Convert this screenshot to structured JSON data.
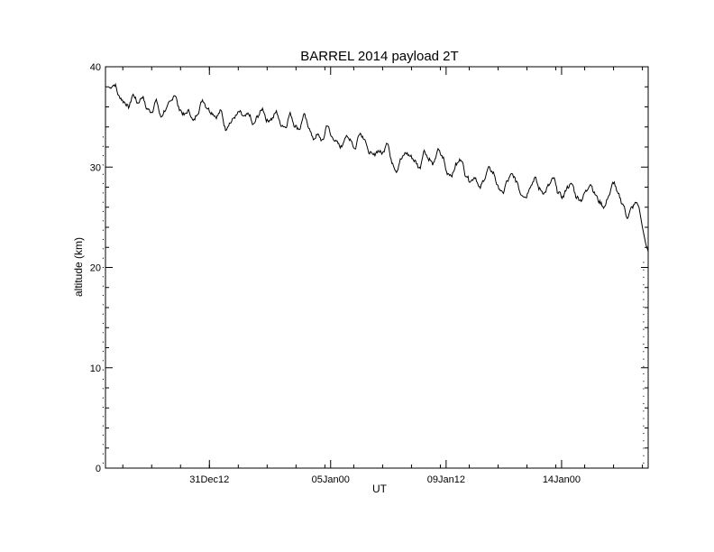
{
  "chart_data": {
    "type": "line",
    "title": "BARREL 2014 payload 2T",
    "xlabel": "UT",
    "ylabel": "altitude (km)",
    "x_unit": "days",
    "xlim": [
      0,
      47
    ],
    "ylim": [
      0,
      40
    ],
    "x_tick_values": [
      9,
      19.5,
      29.5,
      39.5
    ],
    "x_tick_labels": [
      "31Dec12",
      "05Jan00",
      "09Jan12",
      "14Jan00"
    ],
    "y_ticks": [
      0,
      10,
      20,
      30,
      40
    ],
    "grid": false,
    "legend": "none",
    "line_color": "#000000",
    "series": [
      {
        "x": [
          0.3,
          0.8,
          1.2,
          1.6,
          2.0,
          2.4,
          2.8,
          3.2,
          3.6,
          4.0,
          4.4,
          4.8,
          5.2,
          5.6,
          6.0,
          6.4,
          6.8,
          7.2,
          7.6,
          8.0,
          8.4,
          8.8,
          9.2,
          9.6,
          10.0,
          10.4,
          10.8,
          11.2,
          11.6,
          12.0,
          12.4,
          12.8,
          13.2,
          13.6,
          14.0,
          14.4,
          14.8,
          15.2,
          15.6,
          16.0,
          16.4,
          16.8,
          17.2,
          17.6,
          18.0,
          18.4,
          18.8,
          19.2,
          19.6,
          20.0,
          20.4,
          20.8,
          21.2,
          21.6,
          22.0,
          22.4,
          22.8,
          23.2,
          23.6,
          24.0,
          24.4,
          24.8,
          25.2,
          25.6,
          26.0,
          26.4,
          26.8,
          27.2,
          27.6,
          28.0,
          28.4,
          28.8,
          29.2,
          29.6,
          30.0,
          30.4,
          30.8,
          31.2,
          31.6,
          32.0,
          32.4,
          32.8,
          33.2,
          33.6,
          34.0,
          34.4,
          34.8,
          35.2,
          35.6,
          36.0,
          36.4,
          36.8,
          37.2,
          37.6,
          38.0,
          38.4,
          38.8,
          39.2,
          39.6,
          40.0,
          40.4,
          40.8,
          41.2,
          41.6,
          42.0,
          42.4,
          42.8,
          43.2,
          43.6,
          44.0,
          44.4,
          44.8,
          45.2,
          45.6,
          46.0
        ],
        "y": [
          37.9,
          38.2,
          37.0,
          36.5,
          36.0,
          37.2,
          36.4,
          37.0,
          35.8,
          35.5,
          36.6,
          35.0,
          35.7,
          36.5,
          37.2,
          35.8,
          35.2,
          35.6,
          34.6,
          35.4,
          36.7,
          35.9,
          35.4,
          35.0,
          35.6,
          33.8,
          34.4,
          35.0,
          35.5,
          35.0,
          35.3,
          34.2,
          35.1,
          35.8,
          34.6,
          34.8,
          35.5,
          34.2,
          34.0,
          35.3,
          34.1,
          33.8,
          35.2,
          34.0,
          32.8,
          33.2,
          32.6,
          34.2,
          33.0,
          32.5,
          32.0,
          33.0,
          32.8,
          31.8,
          33.4,
          32.9,
          31.5,
          31.2,
          31.6,
          31.4,
          32.5,
          30.5,
          29.6,
          30.8,
          31.4,
          31.1,
          30.6,
          29.9,
          31.6,
          30.8,
          30.3,
          31.7,
          31.0,
          29.4,
          29.2,
          30.3,
          30.8,
          29.2,
          28.6,
          29.0,
          27.9,
          28.8,
          29.9,
          29.4,
          28.0,
          27.4,
          28.6,
          29.3,
          28.6,
          27.3,
          27.0,
          28.1,
          28.9,
          27.8,
          27.4,
          28.2,
          28.9,
          27.5,
          27.0,
          28.0,
          28.3,
          27.0,
          26.7,
          27.6,
          28.3,
          27.3,
          26.5,
          26.0,
          27.2,
          28.5,
          27.3,
          26.3,
          25.0,
          26.0,
          26.5
        ]
      }
    ],
    "final_descent": {
      "x": [
        46.0,
        46.2,
        46.5,
        46.8,
        47.0
      ],
      "y": [
        26.5,
        26.0,
        24.0,
        22.3,
        21.6
      ]
    },
    "dot_columns": [
      {
        "x": -0.2,
        "y_start": 0.5,
        "y_end": 33.0,
        "count": 36
      },
      {
        "x": 46.6,
        "y_start": 0.5,
        "y_end": 20.5,
        "count": 28
      }
    ]
  }
}
